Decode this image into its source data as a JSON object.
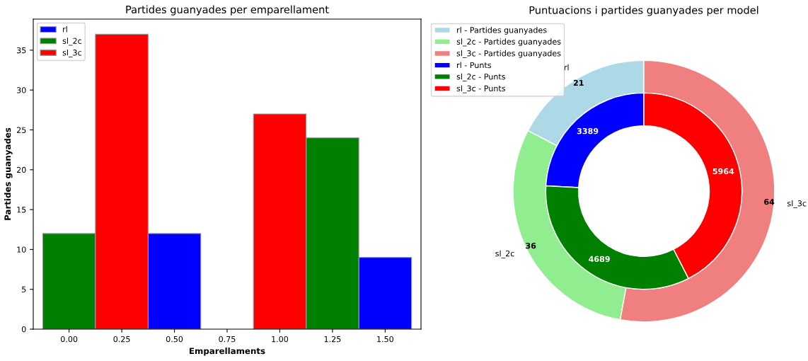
{
  "chart_data": [
    {
      "type": "bar",
      "title": "Partides guanyades per emparellament",
      "xlabel": "Emparellaments",
      "ylabel": "Partides guanyades",
      "series": [
        {
          "name": "rl",
          "color": "#0000ff",
          "x": [
            0.5,
            1.5
          ],
          "values": [
            12,
            9
          ]
        },
        {
          "name": "sl_2c",
          "color": "#008000",
          "x": [
            0,
            1.25
          ],
          "values": [
            12,
            24
          ]
        },
        {
          "name": "sl_3c",
          "color": "#ff0000",
          "x": [
            0.25,
            1.0
          ],
          "values": [
            37,
            27
          ]
        }
      ],
      "xlim": [
        -0.17,
        1.67
      ],
      "ylim": [
        0,
        38.9
      ],
      "xticks": [
        {
          "value": 0,
          "label": "0.00"
        },
        {
          "value": 0.25,
          "label": "0.25"
        },
        {
          "value": 0.5,
          "label": "0.50"
        },
        {
          "value": 0.75,
          "label": "0.75"
        },
        {
          "value": 1.0,
          "label": "1.00"
        },
        {
          "value": 1.25,
          "label": "1.25"
        },
        {
          "value": 1.5,
          "label": "1.50"
        }
      ],
      "yticks": [
        0,
        5,
        10,
        15,
        20,
        25,
        30,
        35
      ],
      "legend": "top left",
      "grid": false
    },
    {
      "type": "donut",
      "title": "Puntuacions i partides guanyades per model",
      "categories": [
        "rl",
        "sl_2c",
        "sl_3c"
      ],
      "series": [
        {
          "name": "- Partides guanyades",
          "colors": [
            "#add8e6",
            "#90ee90",
            "#f08080"
          ],
          "values": [
            21,
            36,
            64
          ]
        },
        {
          "name": "- Punts",
          "colors": [
            "#0000ff",
            "#008000",
            "#ff0000"
          ],
          "values": [
            3389,
            4689,
            5964
          ]
        }
      ],
      "data_labels": true,
      "legend": "top left"
    }
  ]
}
